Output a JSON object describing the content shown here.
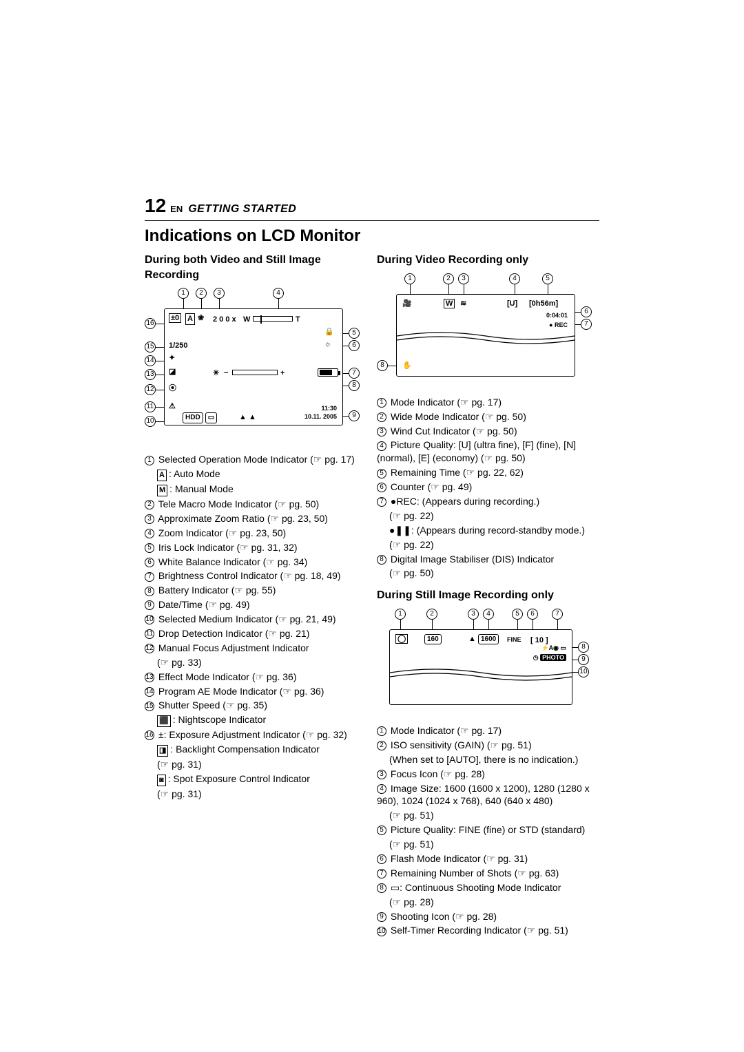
{
  "page": {
    "number": "12",
    "lang": "EN",
    "section": "GETTING STARTED"
  },
  "mainTitle": "Indications on LCD Monitor",
  "pgGlyph": "☞",
  "col1": {
    "subtitle": "During both Video and Still Image Recording",
    "diagram": {
      "zoomText": "2 0 0 x",
      "w": "W",
      "t": "T",
      "expo": "±0",
      "shutter": "1/250",
      "time": "11:30",
      "date": "10.11. 2005",
      "hddBadge": "HDD"
    },
    "items": [
      {
        "n": "1",
        "text": "Selected Operation Mode Indicator (☞ pg. 17)"
      },
      {
        "sub": true,
        "box": "A",
        "text": ": Auto Mode"
      },
      {
        "sub": true,
        "box": "M",
        "text": ": Manual Mode"
      },
      {
        "n": "2",
        "text": "Tele Macro Mode Indicator (☞ pg. 50)"
      },
      {
        "n": "3",
        "text": "Approximate Zoom Ratio (☞ pg. 23, 50)"
      },
      {
        "n": "4",
        "text": "Zoom Indicator (☞ pg. 23, 50)"
      },
      {
        "n": "5",
        "text": "Iris Lock Indicator (☞ pg. 31, 32)"
      },
      {
        "n": "6",
        "text": "White Balance Indicator (☞ pg. 34)"
      },
      {
        "n": "7",
        "text": "Brightness Control Indicator (☞ pg. 18, 49)"
      },
      {
        "n": "8",
        "text": "Battery Indicator (☞ pg. 55)"
      },
      {
        "n": "9",
        "text": "Date/Time (☞ pg. 49)"
      },
      {
        "n": "10",
        "text": "Selected Medium Indicator (☞ pg. 21, 49)"
      },
      {
        "n": "11",
        "text": "Drop Detection Indicator (☞ pg. 21)"
      },
      {
        "n": "12",
        "text": "Manual Focus Adjustment Indicator"
      },
      {
        "sub": true,
        "text": "(☞ pg. 33)"
      },
      {
        "n": "13",
        "text": "Effect Mode Indicator (☞ pg. 36)"
      },
      {
        "n": "14",
        "text": "Program AE Mode Indicator (☞ pg. 36)"
      },
      {
        "n": "15",
        "text": "Shutter Speed (☞ pg. 35)"
      },
      {
        "sub": true,
        "iconbox": "⬛",
        "text": ": Nightscope Indicator"
      },
      {
        "n": "16",
        "text": "±: Exposure Adjustment Indicator (☞ pg. 32)"
      },
      {
        "sub": true,
        "iconbox": "◨",
        "text": ": Backlight Compensation Indicator"
      },
      {
        "sub": true,
        "text": "(☞ pg. 31)"
      },
      {
        "sub": true,
        "iconbox": "◙",
        "text": ": Spot Exposure Control Indicator"
      },
      {
        "sub": true,
        "text": "(☞ pg. 31)"
      }
    ]
  },
  "col2a": {
    "subtitle": "During Video Recording only",
    "diagram": {
      "quality": "[U]",
      "remain": "[0h56m]",
      "counter": "0:04:01",
      "rec": "REC"
    },
    "items": [
      {
        "n": "1",
        "text": "Mode Indicator (☞ pg. 17)"
      },
      {
        "n": "2",
        "text": "Wide Mode Indicator (☞ pg. 50)"
      },
      {
        "n": "3",
        "text": "Wind Cut Indicator (☞ pg. 50)"
      },
      {
        "n": "4",
        "text": "Picture Quality: [U] (ultra fine), [F] (fine), [N] (normal), [E] (economy) (☞ pg. 50)"
      },
      {
        "n": "5",
        "text": "Remaining Time (☞ pg. 22, 62)"
      },
      {
        "n": "6",
        "text": "Counter (☞ pg. 49)"
      },
      {
        "n": "7",
        "text": "●REC: (Appears during recording.)"
      },
      {
        "sub": true,
        "text": "(☞ pg. 22)"
      },
      {
        "sub": true,
        "text": "●❚❚: (Appears during record-standby mode.)"
      },
      {
        "sub": true,
        "text": "(☞ pg. 22)"
      },
      {
        "n": "8",
        "text": "Digital Image Stabiliser (DIS) Indicator"
      },
      {
        "sub": true,
        "text": "(☞ pg. 50)"
      }
    ]
  },
  "col2b": {
    "subtitle": "During Still Image Recording only",
    "diagram": {
      "iso": "160",
      "size": "1600",
      "quality": "FINE",
      "shots": "10",
      "photo": "PHOTO"
    },
    "items": [
      {
        "n": "1",
        "text": "Mode Indicator (☞ pg. 17)"
      },
      {
        "n": "2",
        "text": "ISO sensitivity (GAIN) (☞ pg. 51)"
      },
      {
        "sub": true,
        "text": "(When set to [AUTO], there is no indication.)"
      },
      {
        "n": "3",
        "text": "Focus Icon (☞ pg. 28)"
      },
      {
        "n": "4",
        "text": "Image Size: 1600 (1600 x 1200), 1280 (1280 x 960), 1024 (1024 x 768), 640 (640 x 480)"
      },
      {
        "sub": true,
        "text": "(☞ pg. 51)"
      },
      {
        "n": "5",
        "text": "Picture Quality: FINE (fine) or STD (standard)"
      },
      {
        "sub": true,
        "text": "(☞ pg. 51)"
      },
      {
        "n": "6",
        "text": "Flash Mode Indicator (☞ pg. 31)"
      },
      {
        "n": "7",
        "text": "Remaining Number of Shots (☞ pg. 63)"
      },
      {
        "n": "8",
        "text": "▭: Continuous Shooting Mode Indicator"
      },
      {
        "sub": true,
        "text": "(☞ pg. 28)"
      },
      {
        "n": "9",
        "text": "Shooting Icon (☞ pg. 28)"
      },
      {
        "n": "10",
        "text": "Self-Timer Recording Indicator (☞ pg. 51)"
      }
    ]
  }
}
